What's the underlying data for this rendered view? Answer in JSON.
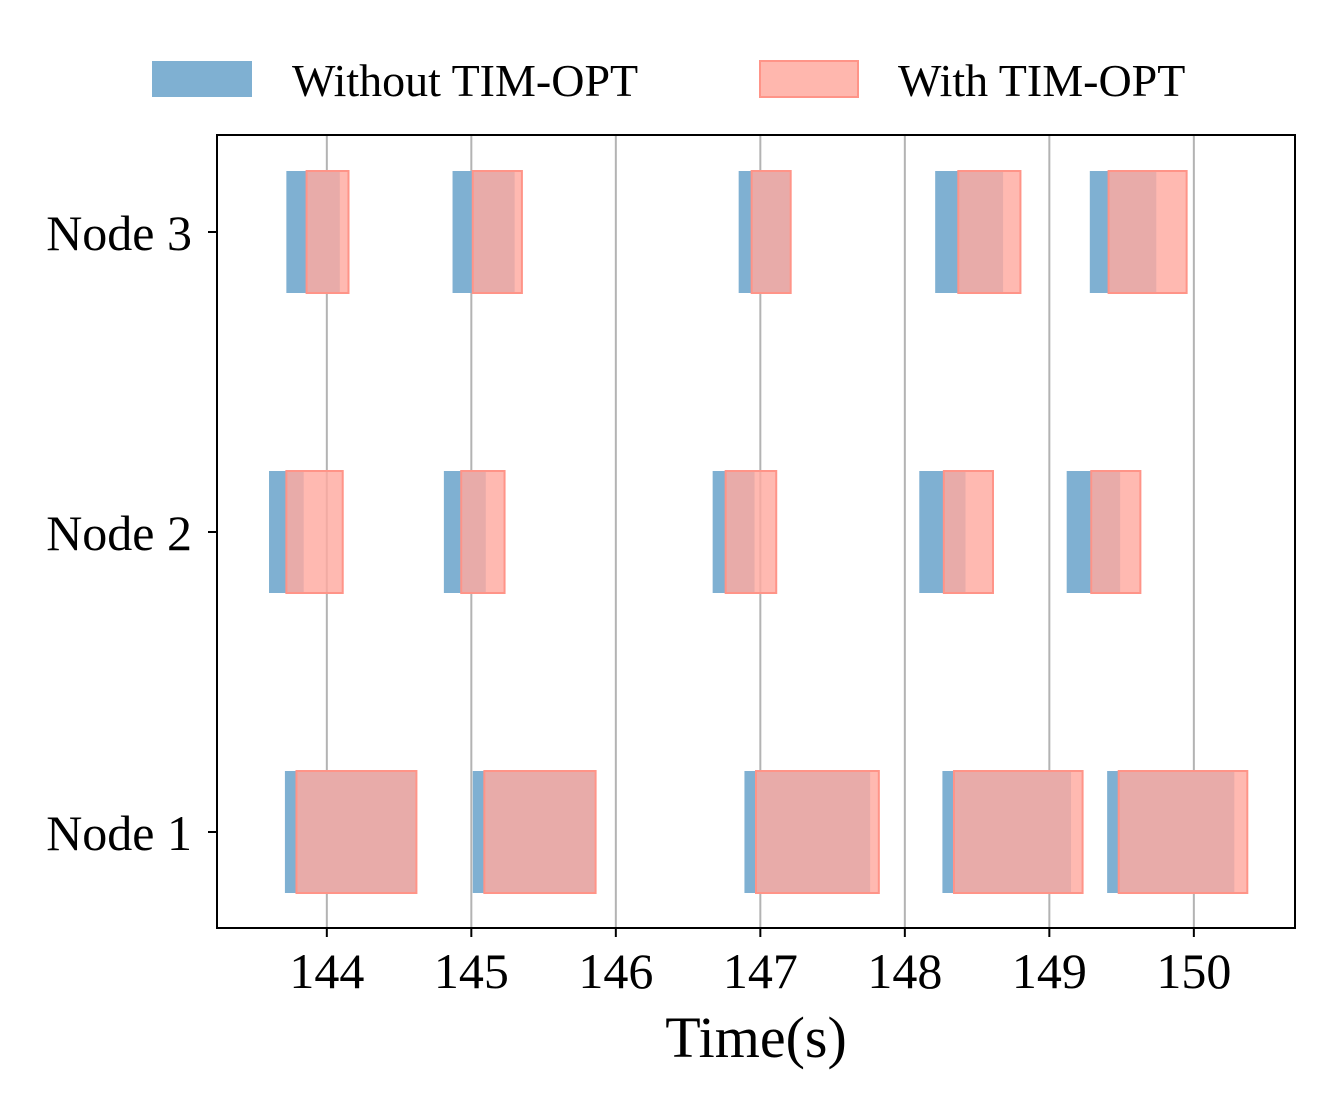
{
  "chart_data": {
    "type": "timeline",
    "xlabel": "Time(s)",
    "ylabel": "",
    "xlim": [
      143.24,
      150.7
    ],
    "grid": "vertical",
    "x_ticks": [
      144,
      145,
      146,
      147,
      148,
      149,
      150
    ],
    "x_tick_labels": [
      "144",
      "145",
      "146",
      "147",
      "148",
      "149",
      "150"
    ],
    "nodes": [
      "Node 1",
      "Node 2",
      "Node 3"
    ],
    "legend": {
      "placement": "top-center",
      "entries": [
        {
          "label": "Without TIM-OPT",
          "color": "#7fb0d2"
        },
        {
          "label": "With TIM-OPT",
          "color": "#ffaaa0"
        }
      ]
    },
    "colors": {
      "without": "#7fb0d2",
      "with": "#ffaaa0",
      "with_edge": "#ff9488",
      "grid": "#b3b3b3"
    },
    "series": [
      {
        "name": "Without TIM-OPT",
        "intervals": {
          "Node 1": [
            [
              143.71,
              144.62
            ],
            [
              145.01,
              145.86
            ],
            [
              146.89,
              147.76
            ],
            [
              148.26,
              149.15
            ],
            [
              149.4,
              150.28
            ]
          ],
          "Node 2": [
            [
              143.6,
              143.84
            ],
            [
              144.81,
              145.1
            ],
            [
              146.67,
              146.96
            ],
            [
              148.1,
              148.42
            ],
            [
              149.12,
              149.49
            ]
          ],
          "Node 3": [
            [
              143.72,
              144.09
            ],
            [
              144.87,
              145.3
            ],
            [
              146.85,
              147.21
            ],
            [
              148.21,
              148.68
            ],
            [
              149.28,
              149.74
            ]
          ]
        }
      },
      {
        "name": "With TIM-OPT",
        "intervals": {
          "Node 1": [
            [
              143.79,
              144.62
            ],
            [
              145.09,
              145.86
            ],
            [
              146.97,
              147.82
            ],
            [
              148.34,
              149.23
            ],
            [
              149.48,
              150.37
            ]
          ],
          "Node 2": [
            [
              143.72,
              144.11
            ],
            [
              144.93,
              145.23
            ],
            [
              146.76,
              147.11
            ],
            [
              148.27,
              148.61
            ],
            [
              149.29,
              149.63
            ]
          ],
          "Node 3": [
            [
              143.86,
              144.15
            ],
            [
              145.01,
              145.35
            ],
            [
              146.94,
              147.21
            ],
            [
              148.37,
              148.8
            ],
            [
              149.41,
              149.95
            ]
          ]
        }
      }
    ]
  }
}
